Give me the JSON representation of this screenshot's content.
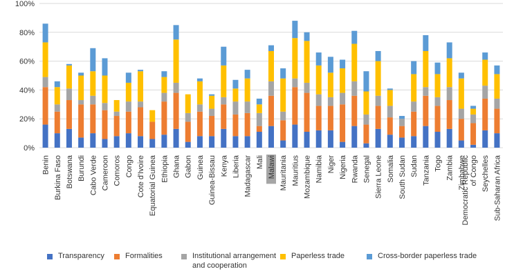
{
  "chart_data": {
    "type": "bar",
    "stacked": true,
    "title": "",
    "xlabel": "",
    "ylabel": "",
    "ylim": [
      0,
      100
    ],
    "yticks": [
      "0%",
      "20%",
      "40%",
      "60%",
      "80%",
      "100%"
    ],
    "gridlines": true,
    "highlighted_category": "Malawi",
    "categories": [
      "Benin",
      "Burkina Faso",
      "Botswana",
      "Burundi",
      "Cabo Verde",
      "Cameroon",
      "Comoros",
      "Congo",
      "Cote d'Ivoire",
      "Equatorial Guinea",
      "Ethiopia",
      "Ghana",
      "Gabon",
      "Guinea",
      "Guinea-Bissau",
      "Kenya",
      "Liberia",
      "Madagascar",
      "Mali",
      "Malawi",
      "Mauritania",
      "Mauritius",
      "Mozambique",
      "Namibia",
      "Niger",
      "Nigeria",
      "Rwanda",
      "Senegal",
      "Sierra Leone",
      "Somalia",
      "South Sudan",
      "Sudan",
      "Tanzania",
      "Togo",
      "Zambia",
      "Zimbabwe",
      "Democratic Republic of Congo",
      "Seychelles",
      "Sub-Saharan Africa"
    ],
    "series": [
      {
        "name": "Transparency",
        "color": "#4472C4",
        "values": [
          16,
          10,
          13,
          7,
          10,
          6,
          8,
          10,
          8,
          6,
          9,
          13,
          4,
          8,
          8,
          13,
          8,
          8,
          11,
          15,
          5,
          16,
          11,
          12,
          12,
          4,
          15,
          3,
          13,
          9,
          7,
          8,
          15,
          11,
          13,
          5,
          2,
          12,
          10
        ]
      },
      {
        "name": "Formalities",
        "color": "#ED7D31",
        "values": [
          26,
          15,
          20,
          23,
          20,
          20,
          14,
          15,
          20,
          12,
          23,
          25,
          14,
          17,
          14,
          17,
          15,
          16,
          4,
          21,
          14,
          26,
          27,
          17,
          17,
          26,
          21,
          13,
          16,
          12,
          8,
          17,
          21,
          18,
          20,
          15,
          15,
          22,
          17
        ]
      },
      {
        "name": "Institutional arrangement\nand cooperation",
        "color": "#A5A5A5",
        "values": [
          7,
          5,
          8,
          3,
          6,
          5,
          3,
          7,
          4,
          0,
          6,
          7,
          6,
          5,
          5,
          5,
          9,
          8,
          9,
          10,
          6,
          6,
          7,
          8,
          6,
          8,
          10,
          7,
          7,
          8,
          5,
          7,
          6,
          6,
          9,
          7,
          6,
          9,
          7
        ]
      },
      {
        "name": "Paperless trade",
        "color": "#FFC000",
        "values": [
          24,
          12,
          16,
          17,
          17,
          19,
          8,
          13,
          21,
          8,
          11,
          30,
          13,
          16,
          9,
          22,
          9,
          16,
          6,
          21,
          23,
          28,
          29,
          20,
          17,
          17,
          26,
          16,
          24,
          11,
          0,
          19,
          25,
          16,
          20,
          21,
          4,
          18,
          17
        ]
      },
      {
        "name": "Cross-border paperless trade",
        "color": "#5B9BD5",
        "values": [
          13,
          4,
          1,
          2,
          16,
          12,
          0,
          7,
          1,
          0,
          4,
          10,
          0,
          2,
          1,
          13,
          6,
          6,
          4,
          4,
          7,
          12,
          6,
          9,
          11,
          6,
          9,
          14,
          7,
          1,
          2,
          9,
          11,
          8,
          11,
          4,
          2,
          5,
          6
        ]
      }
    ]
  }
}
